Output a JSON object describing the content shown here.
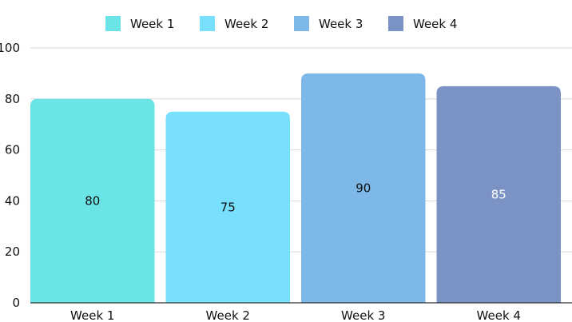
{
  "chart_data": {
    "type": "bar",
    "title": "",
    "xlabel": "",
    "ylabel": "",
    "ylim": [
      0,
      100
    ],
    "yticks": [
      0,
      20,
      40,
      60,
      80,
      100
    ],
    "categories": [
      "Week 1",
      "Week 2",
      "Week 3",
      "Week 4"
    ],
    "values": [
      80,
      75,
      90,
      85
    ],
    "colors": [
      "#6ae4e6",
      "#78dffc",
      "#7db8e8",
      "#7b93c4"
    ],
    "value_label_colors": [
      "#111111",
      "#111111",
      "#111111",
      "#ffffff"
    ],
    "legend": {
      "position": "top-center",
      "entries": [
        "Week 1",
        "Week 2",
        "Week 3",
        "Week 4"
      ]
    },
    "grid": true,
    "data_labels": true
  }
}
